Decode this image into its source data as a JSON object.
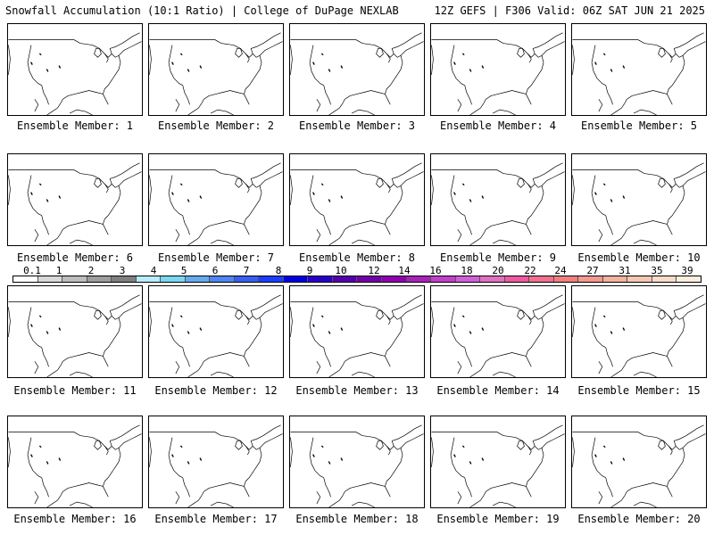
{
  "header": {
    "left": "Snowfall Accumulation (10:1 Ratio) | College of DuPage NEXLAB",
    "right": "12Z GEFS | F306 Valid: 06Z SAT JUN 21 2025"
  },
  "panels": [
    {
      "label": "Ensemble Member: 1"
    },
    {
      "label": "Ensemble Member: 2"
    },
    {
      "label": "Ensemble Member: 3"
    },
    {
      "label": "Ensemble Member: 4"
    },
    {
      "label": "Ensemble Member: 5"
    },
    {
      "label": "Ensemble Member: 6"
    },
    {
      "label": "Ensemble Member: 7"
    },
    {
      "label": "Ensemble Member: 8"
    },
    {
      "label": "Ensemble Member: 9"
    },
    {
      "label": "Ensemble Member: 10"
    },
    {
      "label": "Ensemble Member: 11"
    },
    {
      "label": "Ensemble Member: 12"
    },
    {
      "label": "Ensemble Member: 13"
    },
    {
      "label": "Ensemble Member: 14"
    },
    {
      "label": "Ensemble Member: 15"
    },
    {
      "label": "Ensemble Member: 16"
    },
    {
      "label": "Ensemble Member: 17"
    },
    {
      "label": "Ensemble Member: 18"
    },
    {
      "label": "Ensemble Member: 19"
    },
    {
      "label": "Ensemble Member: 20"
    }
  ],
  "color_scale": {
    "labels": [
      "0.1",
      "1",
      "2",
      "3",
      "4",
      "5",
      "6",
      "7",
      "8",
      "9",
      "10",
      "12",
      "14",
      "16",
      "18",
      "20",
      "22",
      "24",
      "27",
      "31",
      "35",
      "39"
    ],
    "colors": [
      "#ffffff",
      "#d9d9d9",
      "#bdbdbd",
      "#9e9e9e",
      "#7f7f7f",
      "#b8ecff",
      "#7ad7f0",
      "#66aaee",
      "#4f86f0",
      "#3a5ef0",
      "#1e3cff",
      "#0000e0",
      "#2a00c8",
      "#5500b0",
      "#7400a8",
      "#9000b0",
      "#a822b8",
      "#c040c8",
      "#d060d8",
      "#e070c0",
      "#ee5aa0",
      "#f07090",
      "#f08080",
      "#f29a90",
      "#f4b2a0",
      "#f6c8b2",
      "#f8dcc8",
      "#fbeede"
    ]
  }
}
